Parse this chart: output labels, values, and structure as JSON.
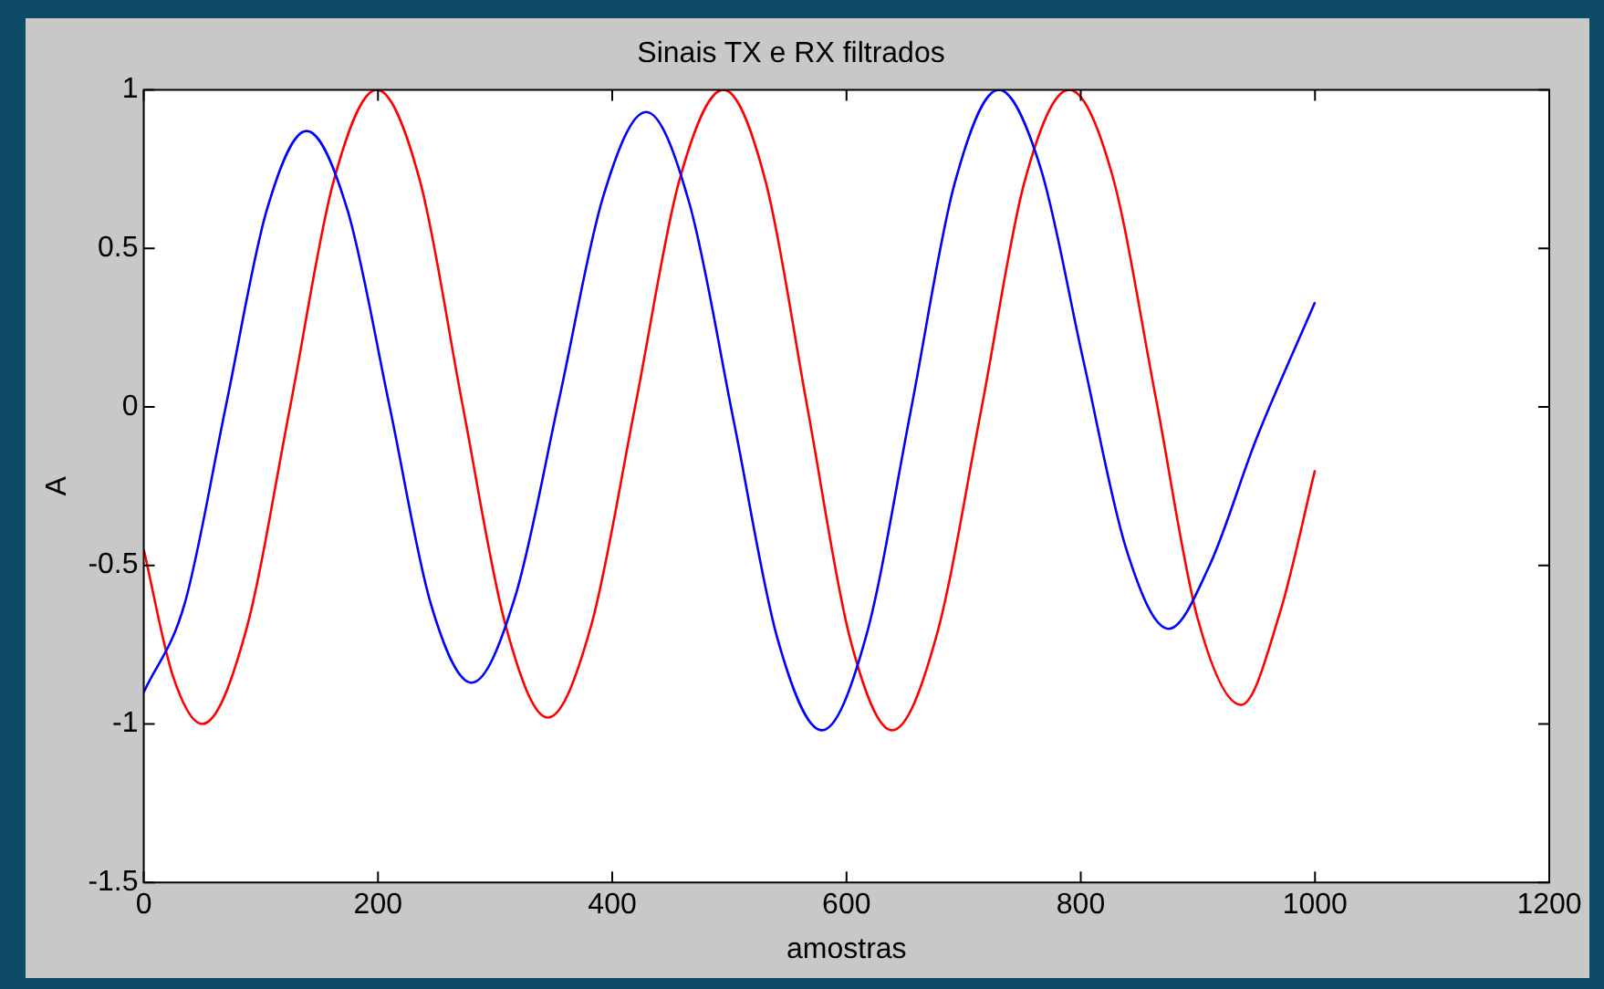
{
  "chart_data": {
    "type": "line",
    "title": "Sinais TX e RX filtrados",
    "xlabel": "amostras",
    "ylabel": "A",
    "xlim": [
      0,
      1200
    ],
    "xticks": [
      0,
      200,
      400,
      600,
      800,
      1000,
      1200
    ],
    "ylim": [
      -1.5,
      1
    ],
    "yticks": [
      -1.5,
      -1,
      -0.5,
      0,
      0.5,
      1
    ],
    "grid": false,
    "legend": false,
    "marker": "none",
    "line_style": "solid",
    "series": [
      {
        "color": "#0000ff",
        "x": [
          0,
          35,
          70,
          105,
          139,
          174,
          210,
          245,
          280,
          317,
          355,
          392,
          429,
          466,
          504,
          541,
          579,
          617,
          655,
          692,
          730,
          766,
          802,
          839,
          875,
          910,
          950,
          1000
        ],
        "values": [
          -0.9,
          -0.62,
          0.0,
          0.62,
          0.87,
          0.62,
          0.0,
          -0.62,
          -0.87,
          -0.6,
          0.03,
          0.66,
          0.93,
          0.64,
          -0.05,
          -0.73,
          -1.02,
          -0.72,
          -0.01,
          0.7,
          1.0,
          0.75,
          0.15,
          -0.45,
          -0.7,
          -0.5,
          -0.1,
          0.33
        ]
      },
      {
        "color": "#ff0000",
        "x": [
          0,
          25,
          50,
          87,
          125,
          162,
          199,
          236,
          272,
          309,
          345,
          382,
          420,
          457,
          495,
          531,
          567,
          603,
          639,
          677,
          715,
          752,
          790,
          827,
          864,
          900,
          937,
          970,
          1000
        ],
        "values": [
          -0.45,
          -0.85,
          -1.0,
          -0.71,
          0.0,
          0.71,
          1.0,
          0.71,
          0.01,
          -0.69,
          -0.98,
          -0.69,
          0.01,
          0.71,
          1.0,
          0.71,
          -0.01,
          -0.73,
          -1.02,
          -0.72,
          -0.01,
          0.71,
          1.0,
          0.73,
          0.03,
          -0.67,
          -0.94,
          -0.65,
          -0.2
        ]
      }
    ]
  }
}
